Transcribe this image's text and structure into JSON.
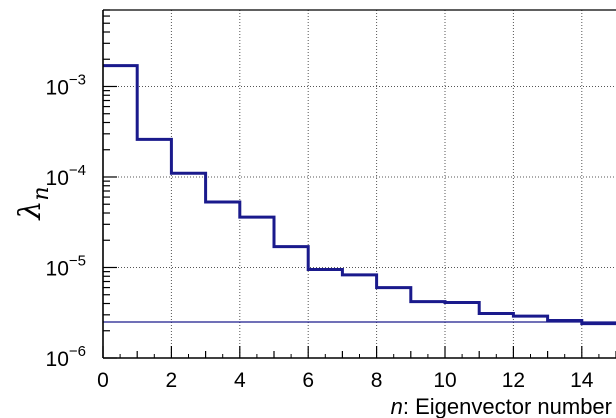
{
  "chart_data": {
    "type": "line",
    "step": true,
    "xlabel_italic": "n",
    "xlabel_rest": ": Eigenvector number",
    "ylabel_symbol": "λ",
    "ylabel_subscript": "n",
    "xlim": [
      0,
      15
    ],
    "ylim": [
      1e-06,
      0.007
    ],
    "yscale": "log",
    "grid": true,
    "x_ticks": [
      0,
      2,
      4,
      6,
      8,
      10,
      12,
      14
    ],
    "y_ticks": [
      {
        "value": 1e-06,
        "base": "10",
        "exp": "−6"
      },
      {
        "value": 1e-05,
        "base": "10",
        "exp": "−5"
      },
      {
        "value": 0.0001,
        "base": "10",
        "exp": "−4"
      },
      {
        "value": 0.001,
        "base": "10",
        "exp": "−3"
      }
    ],
    "series": [
      {
        "color": "#1a1a8c",
        "bins_x": [
          0,
          1,
          2,
          3,
          4,
          5,
          6,
          7,
          8,
          9,
          10,
          11,
          12,
          13,
          14,
          15
        ],
        "values": [
          0.0017,
          0.00026,
          0.00011,
          5.3e-05,
          3.6e-05,
          1.7e-05,
          9.5e-06,
          8.3e-06,
          6e-06,
          4.2e-06,
          4.1e-06,
          3.1e-06,
          2.9e-06,
          2.6e-06,
          2.4e-06
        ]
      }
    ],
    "reference_line": {
      "value": 2.5e-06,
      "color": "#1a1a8c"
    }
  }
}
